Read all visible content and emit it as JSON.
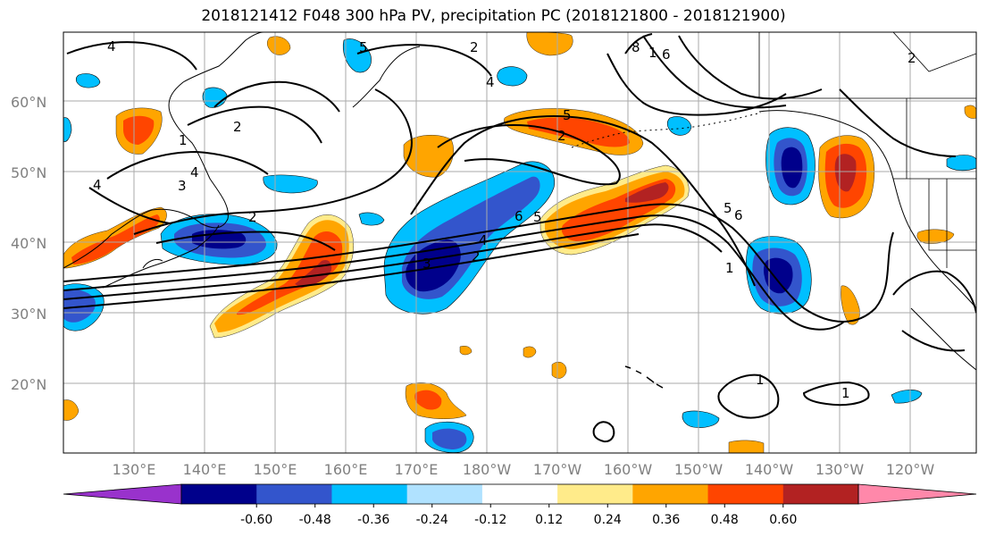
{
  "title": "2018121412 F048 300 hPa PV, precipitation PC (2018121800 - 2018121900)",
  "latitude_labels": [
    "60°N",
    "50°N",
    "40°N",
    "30°N",
    "20°N"
  ],
  "longitude_labels": [
    "130°E",
    "140°E",
    "150°E",
    "160°E",
    "170°E",
    "180°W",
    "170°W",
    "160°W",
    "150°W",
    "140°W",
    "130°W",
    "120°W"
  ],
  "pv_contour_labels": [
    "4",
    "5",
    "2",
    "4",
    "8",
    "1",
    "6",
    "2",
    "1",
    "4",
    "3",
    "4",
    "2",
    "5",
    "2",
    "6",
    "5",
    "4",
    "3",
    "2",
    "5",
    "6",
    "1",
    "1",
    "1",
    "2"
  ],
  "colorbar": {
    "colors": [
      "#9932CC",
      "#00008B",
      "#3355CC",
      "#00BFFF",
      "#B0E2FF",
      "#FFFFFF",
      "#FFEB8A",
      "#FFA500",
      "#FF4500",
      "#B22222",
      "#FF88AA"
    ],
    "tick_labels": [
      "-0.60",
      "-0.48",
      "-0.36",
      "-0.24",
      "-0.12",
      "0.12",
      "0.24",
      "0.36",
      "0.48",
      "0.60"
    ]
  },
  "colors": {
    "grid": "#aaaaaa",
    "coast": "#000000",
    "contour": "#000000"
  }
}
